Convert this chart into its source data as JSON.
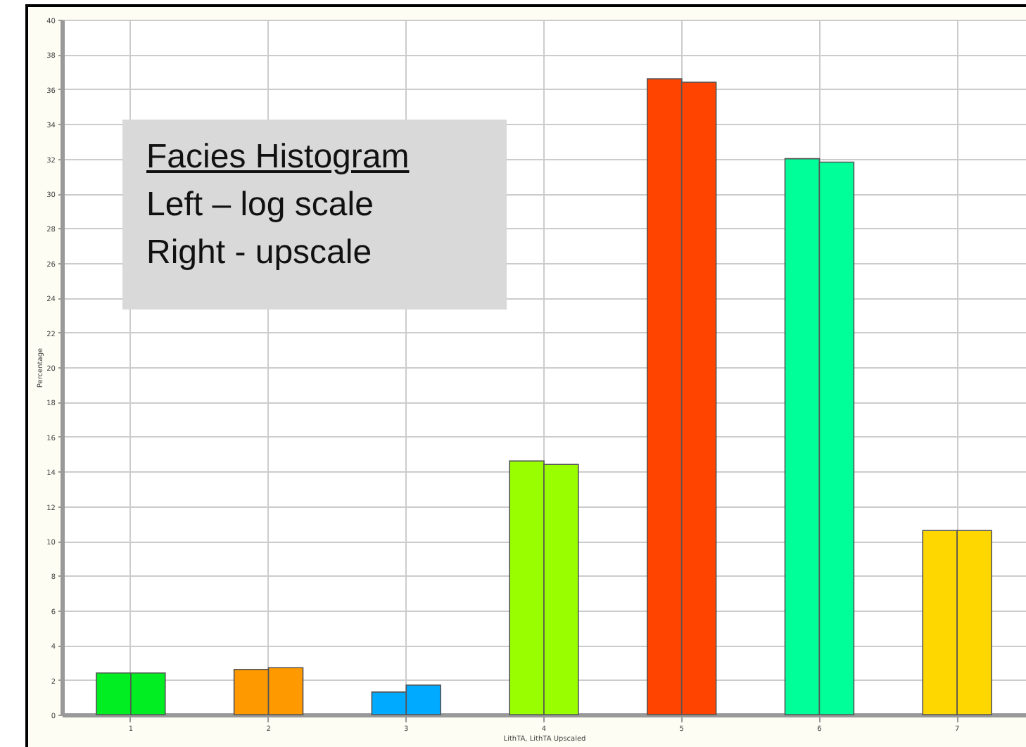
{
  "chart_data": {
    "type": "bar",
    "xlabel": "LithTA, LithTA Upscaled",
    "ylabel": "Percentage",
    "annotations": [
      "Facies Histogram",
      "Left – log scale",
      "Right - upscale"
    ],
    "categories": [
      "1",
      "2",
      "3",
      "4",
      "5",
      "6",
      "7"
    ],
    "series": [
      {
        "colors": [
          "#00ee22",
          "#ff9900",
          "#00aaff",
          "#99ff00",
          "#ff4400",
          "#00ff99",
          "#ffd700"
        ],
        "values": [
          2.4,
          2.6,
          1.3,
          14.6,
          36.6,
          32.0,
          10.6
        ]
      },
      {
        "colors": [
          "#00ee22",
          "#ff9900",
          "#00aaff",
          "#99ff00",
          "#ff4400",
          "#00ff99",
          "#ffd700"
        ],
        "values": [
          2.4,
          2.7,
          1.7,
          14.4,
          36.4,
          31.8,
          10.6
        ]
      }
    ],
    "ylim": [
      0,
      40
    ],
    "yticks": [
      0,
      2,
      4,
      6,
      8,
      10,
      12,
      14,
      16,
      18,
      20,
      22,
      24,
      26,
      28,
      30,
      32,
      34,
      36,
      38,
      40
    ],
    "grid": true
  }
}
